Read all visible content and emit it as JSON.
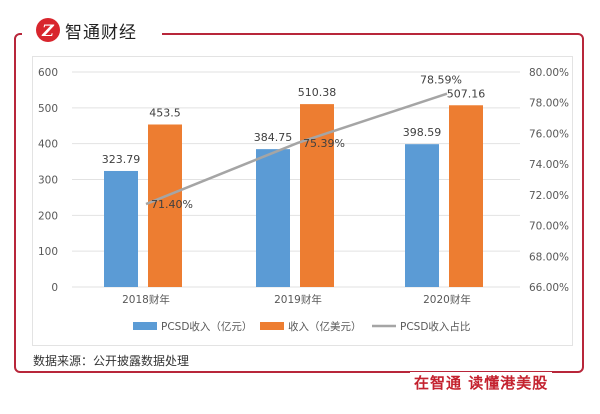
{
  "brand": {
    "logo_letter": "Z",
    "name": "智通财经"
  },
  "slogan": "在智通 读懂港美股",
  "source_note": "数据来源：公开披露数据处理",
  "colors": {
    "blue": "#5b9bd5",
    "orange": "#ed7d31",
    "gray": "#a5a5a5",
    "frame": "#b8263a"
  },
  "chart_data": {
    "type": "bar",
    "title": "",
    "categories": [
      "2018财年",
      "2019财年",
      "2020财年"
    ],
    "series": [
      {
        "name": "PCSD收入（亿元）",
        "type": "bar",
        "axis": "left",
        "values": [
          323.79,
          384.75,
          398.59
        ],
        "labels": [
          "323.79",
          "384.75",
          "398.59"
        ]
      },
      {
        "name": "收入（亿美元）",
        "type": "bar",
        "axis": "left",
        "values": [
          453.5,
          510.38,
          507.16
        ],
        "labels": [
          "453.5",
          "510.38",
          "507.16"
        ]
      },
      {
        "name": "PCSD收入占比",
        "type": "line",
        "axis": "right",
        "values": [
          71.4,
          75.39,
          78.59
        ],
        "labels": [
          "71.40%",
          "75.39%",
          "78.59%"
        ]
      }
    ],
    "left_axis": {
      "min": 0,
      "max": 600,
      "ticks": [
        "0",
        "100",
        "200",
        "300",
        "400",
        "500",
        "600"
      ]
    },
    "right_axis": {
      "min": 66,
      "max": 80,
      "ticks": [
        "66.00%",
        "68.00%",
        "70.00%",
        "72.00%",
        "74.00%",
        "76.00%",
        "78.00%",
        "80.00%"
      ]
    },
    "grid": true,
    "legend": "bottom"
  }
}
